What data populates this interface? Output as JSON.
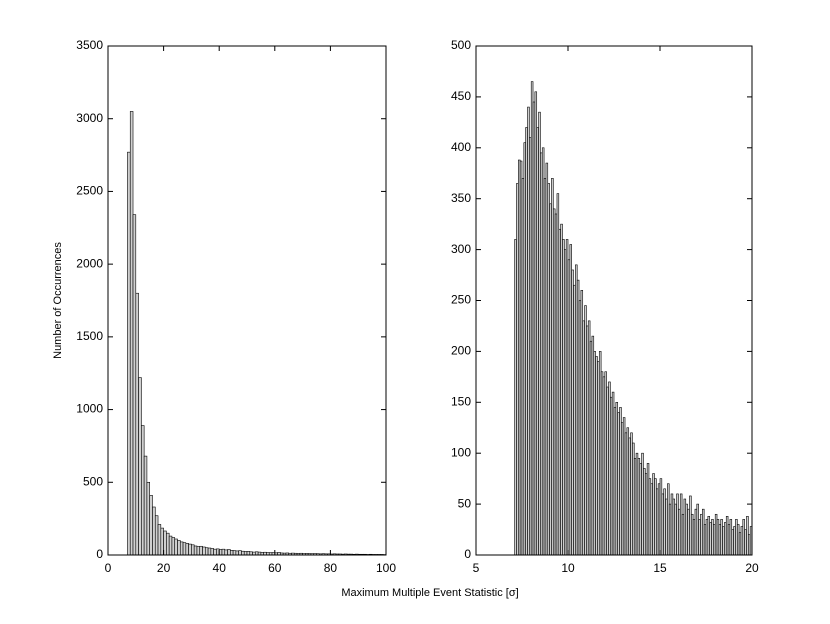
{
  "chart_data": [
    {
      "type": "histogram",
      "xlabel": "Maximum Multiple Event Statistic [σ]",
      "ylabel": "Number of Occurrences",
      "color": "#d0d0d0",
      "bins": [
        7,
        8,
        9,
        10,
        11,
        12,
        13,
        14,
        15,
        16,
        17,
        18,
        19,
        20,
        21,
        22,
        23,
        24,
        25,
        26,
        27,
        28,
        29,
        30,
        31,
        32,
        33,
        34,
        35,
        36,
        37,
        38,
        39,
        40,
        41,
        42,
        43,
        44,
        45,
        46,
        47,
        48,
        49,
        50,
        51,
        52,
        53,
        54,
        55,
        56,
        57,
        58,
        59,
        60,
        61,
        62,
        63,
        64,
        65,
        66,
        67,
        68,
        69,
        70,
        71,
        72,
        73,
        74,
        75,
        76,
        77,
        78,
        79,
        80,
        81,
        82,
        83,
        84,
        85,
        86,
        87,
        88,
        89,
        90,
        91,
        92,
        93,
        94,
        95,
        96,
        97,
        98,
        99,
        100
      ],
      "values": [
        2770,
        3050,
        2340,
        1800,
        1220,
        890,
        680,
        500,
        410,
        330,
        270,
        210,
        185,
        165,
        150,
        130,
        120,
        110,
        100,
        90,
        85,
        80,
        75,
        70,
        62,
        58,
        60,
        55,
        50,
        48,
        45,
        40,
        42,
        38,
        40,
        35,
        38,
        32,
        30,
        28,
        30,
        26,
        24,
        25,
        22,
        20,
        22,
        20,
        18,
        19,
        17,
        16,
        17,
        15,
        18,
        14,
        13,
        14,
        12,
        13,
        12,
        11,
        12,
        10,
        11,
        10,
        9,
        10,
        9,
        8,
        9,
        8,
        8,
        7,
        8,
        7,
        7,
        6,
        7,
        6,
        6,
        5,
        6,
        5,
        5,
        5,
        4,
        5,
        4,
        4,
        4,
        4,
        3
      ],
      "xlim": [
        0,
        100
      ],
      "xticks": [
        0,
        20,
        40,
        60,
        80,
        100
      ],
      "ylim": [
        0,
        3500
      ],
      "yticks": [
        0,
        500,
        1000,
        1500,
        2000,
        2500,
        3000,
        3500
      ]
    },
    {
      "type": "histogram",
      "color": "#d0d0d0",
      "bins": [
        7.1,
        7.2,
        7.3,
        7.4,
        7.5,
        7.6,
        7.7,
        7.8,
        7.9,
        8.0,
        8.1,
        8.2,
        8.3,
        8.4,
        8.5,
        8.6,
        8.7,
        8.8,
        8.9,
        9.0,
        9.1,
        9.2,
        9.3,
        9.4,
        9.5,
        9.6,
        9.7,
        9.8,
        9.9,
        10.0,
        10.1,
        10.2,
        10.3,
        10.4,
        10.5,
        10.6,
        10.7,
        10.8,
        10.9,
        11.0,
        11.1,
        11.2,
        11.3,
        11.4,
        11.5,
        11.6,
        11.7,
        11.8,
        11.9,
        12.0,
        12.1,
        12.2,
        12.3,
        12.4,
        12.5,
        12.6,
        12.7,
        12.8,
        12.9,
        13.0,
        13.1,
        13.2,
        13.3,
        13.4,
        13.5,
        13.6,
        13.7,
        13.8,
        13.9,
        14.0,
        14.1,
        14.2,
        14.3,
        14.4,
        14.5,
        14.6,
        14.7,
        14.8,
        14.9,
        15.0,
        15.1,
        15.2,
        15.3,
        15.4,
        15.5,
        15.6,
        15.7,
        15.8,
        15.9,
        16.0,
        16.1,
        16.2,
        16.3,
        16.4,
        16.5,
        16.6,
        16.7,
        16.8,
        16.9,
        17.0,
        17.1,
        17.2,
        17.3,
        17.4,
        17.5,
        17.6,
        17.7,
        17.8,
        17.9,
        18.0,
        18.1,
        18.2,
        18.3,
        18.4,
        18.5,
        18.6,
        18.7,
        18.8,
        18.9,
        19.0,
        19.1,
        19.2,
        19.3,
        19.4,
        19.5,
        19.6,
        19.7,
        19.8,
        19.9,
        20.0
      ],
      "values": [
        310,
        365,
        388,
        387,
        370,
        405,
        420,
        440,
        410,
        465,
        445,
        455,
        420,
        435,
        395,
        400,
        370,
        385,
        365,
        345,
        370,
        340,
        335,
        355,
        320,
        325,
        310,
        300,
        310,
        290,
        305,
        280,
        265,
        285,
        270,
        250,
        260,
        230,
        245,
        225,
        230,
        210,
        215,
        200,
        195,
        190,
        200,
        180,
        175,
        180,
        165,
        170,
        155,
        160,
        145,
        150,
        140,
        145,
        130,
        135,
        120,
        125,
        115,
        120,
        110,
        95,
        100,
        95,
        90,
        100,
        85,
        80,
        90,
        75,
        70,
        80,
        75,
        65,
        70,
        75,
        60,
        65,
        55,
        70,
        50,
        60,
        55,
        50,
        60,
        45,
        60,
        40,
        55,
        50,
        45,
        58,
        40,
        35,
        45,
        50,
        35,
        40,
        45,
        30,
        35,
        38,
        32,
        35,
        30,
        40,
        35,
        30,
        35,
        28,
        32,
        38,
        30,
        35,
        25,
        28,
        35,
        30,
        22,
        28,
        35,
        25,
        38,
        20,
        28
      ],
      "xlim": [
        5,
        20
      ],
      "xticks": [
        5,
        10,
        15,
        20
      ],
      "ylim": [
        0,
        500
      ],
      "yticks": [
        0,
        50,
        100,
        150,
        200,
        250,
        300,
        350,
        400,
        450,
        500
      ]
    }
  ]
}
